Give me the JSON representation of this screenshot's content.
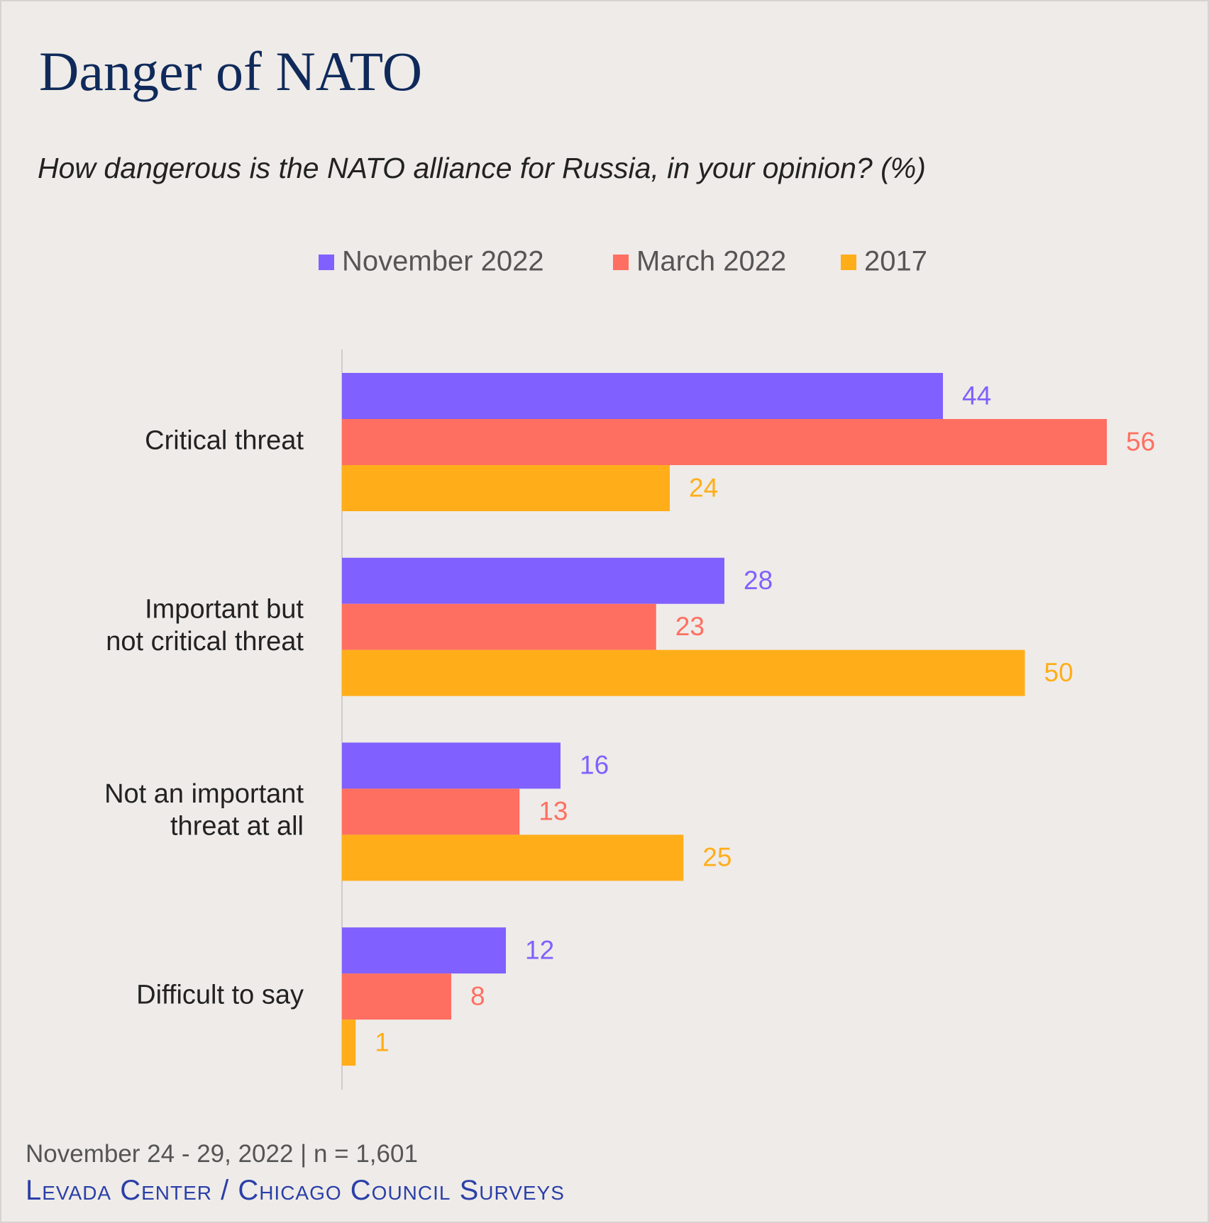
{
  "chart_data": {
    "type": "bar",
    "orientation": "horizontal",
    "title": "Danger of NATO",
    "subtitle": "How dangerous is the NATO alliance for Russia, in your opinion? (%)",
    "categories": [
      "Critical threat",
      "Important but\nnot critical threat",
      "Not an important\nthreat at all",
      "Difficult to say"
    ],
    "series": [
      {
        "name": "November 2022",
        "color": "#8060fe",
        "values": [
          44,
          28,
          16,
          12
        ]
      },
      {
        "name": "March 2022",
        "color": "#ff6f61",
        "values": [
          56,
          23,
          13,
          8
        ]
      },
      {
        "name": "2017",
        "color": "#ffae1a",
        "values": [
          24,
          50,
          25,
          1
        ]
      }
    ],
    "legend": "top",
    "footnote": "November 24 - 29, 2022 | n = 1,601",
    "source": "Levada Center / Chicago Council Surveys"
  }
}
